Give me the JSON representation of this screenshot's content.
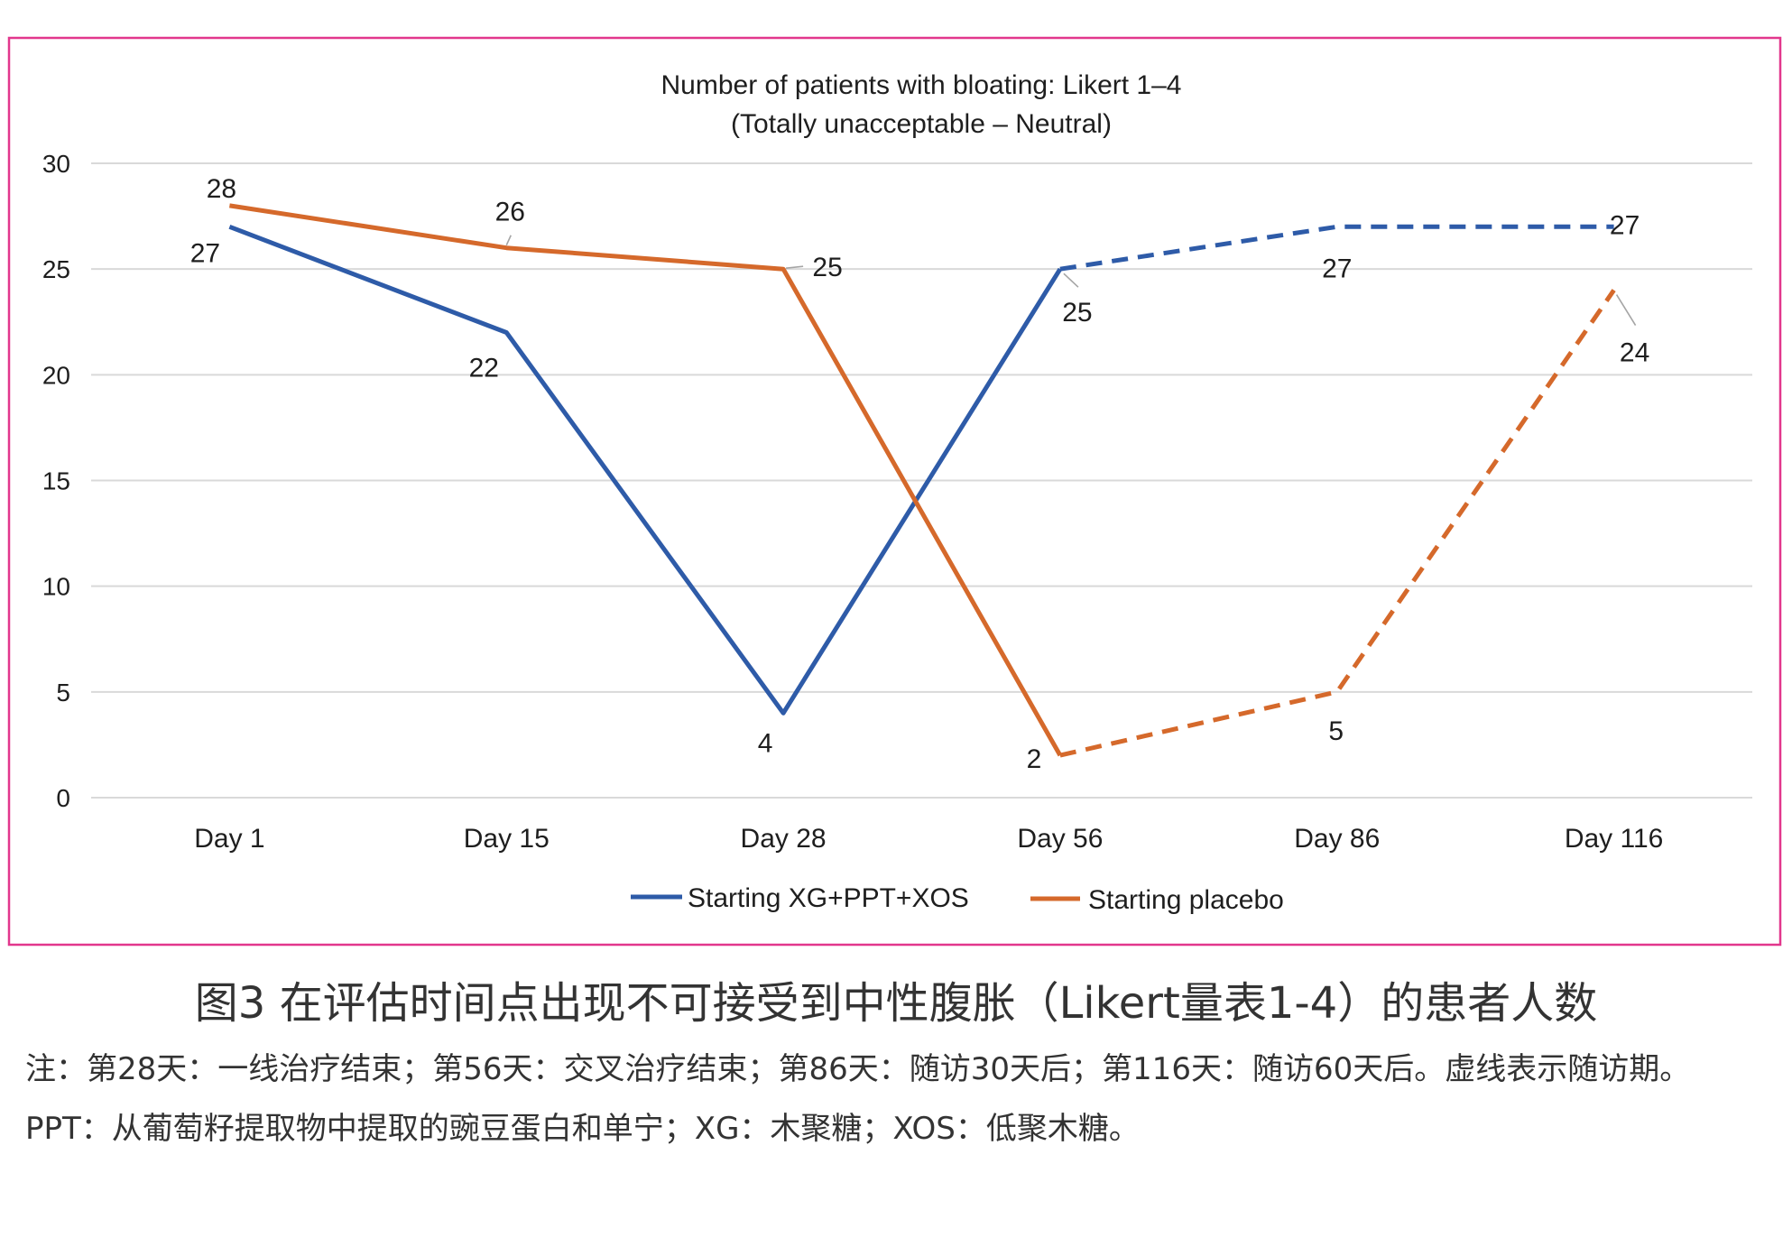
{
  "chart_data": {
    "type": "line",
    "title": "Number of patients with bloating: Likert 1–4",
    "subtitle": "(Totally unacceptable – Neutral)",
    "categories": [
      "Day 1",
      "Day 15",
      "Day 28",
      "Day 56",
      "Day 86",
      "Day 116"
    ],
    "yticks": [
      0,
      5,
      10,
      15,
      20,
      25,
      30
    ],
    "ylim": [
      0,
      30
    ],
    "grid": "horizontal",
    "legend": "bottom",
    "dashed_from": "Day 56",
    "series": [
      {
        "name": "Starting XG+PPT+XOS",
        "color": "#2e5ba8",
        "values": [
          27,
          22,
          4,
          25,
          27,
          27
        ]
      },
      {
        "name": "Starting placebo",
        "color": "#d5692b",
        "values": [
          28,
          26,
          25,
          2,
          5,
          24
        ]
      }
    ]
  },
  "frame_color": "#e2378d",
  "figure": {
    "caption": "图3 在评估时间点出现不可接受到中性腹胀（Likert量表1-4）的患者人数",
    "note": "注：第28天：一线治疗结束；第56天：交叉治疗结束；第86天：随访30天后；第116天：随访60天后。虚线表示随访期。PPT：从葡萄籽提取物中提取的豌豆蛋白和单宁；XG：木聚糖；XOS：低聚木糖。"
  }
}
